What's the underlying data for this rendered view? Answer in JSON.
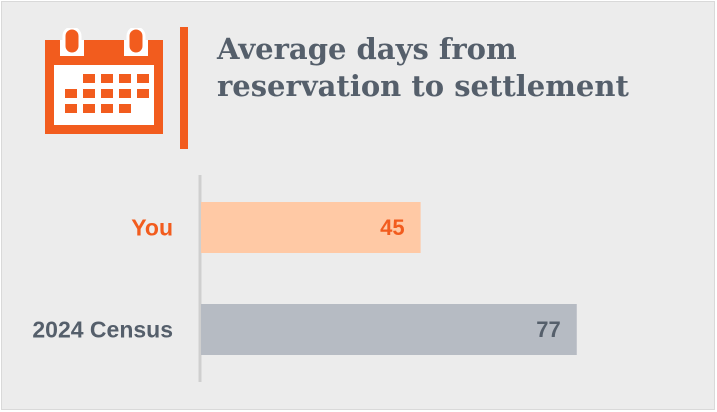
{
  "header": {
    "title": "Average days from reservation to settlement",
    "icon": "calendar-icon",
    "accent_color": "#f25c1e"
  },
  "chart_data": {
    "type": "bar",
    "orientation": "horizontal",
    "title": "Average days from reservation to settlement",
    "categories": [
      "You",
      "2024 Census"
    ],
    "values": [
      45,
      77
    ],
    "value_labels": [
      "45",
      "77"
    ],
    "bar_colors": [
      "#ffc9a5",
      "#b6bbc3"
    ],
    "label_colors": [
      "#f25c1e",
      "#555f6b"
    ],
    "value_label_colors": [
      "#f25c1e",
      "#555f6b"
    ],
    "xlim": [
      0,
      100
    ],
    "grid": false,
    "legend": "none"
  }
}
